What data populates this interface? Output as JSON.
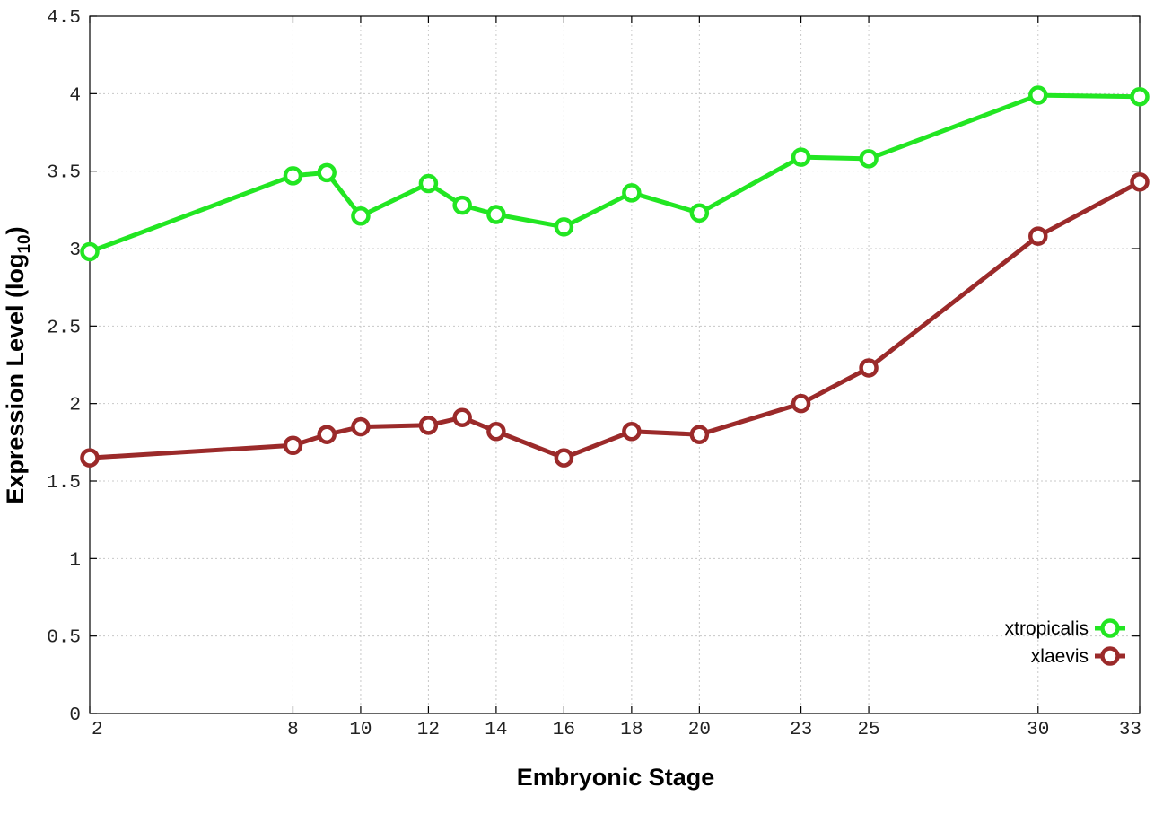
{
  "chart_data": {
    "type": "line",
    "xlabel": "Embryonic Stage",
    "ylabel": "Expression Level (log",
    "ylabel_subscript": "10",
    "ylabel_close": ")",
    "x": [
      2,
      8,
      9,
      10,
      12,
      13,
      14,
      16,
      18,
      20,
      23,
      25,
      30,
      33
    ],
    "x_tick_labels": [
      "2",
      "8",
      "10",
      "12",
      "14",
      "16",
      "18",
      "20",
      "23",
      "25",
      "30",
      "33"
    ],
    "x_tick_values": [
      2,
      8,
      10,
      12,
      14,
      16,
      18,
      20,
      23,
      25,
      30,
      33
    ],
    "xlim": [
      2,
      33
    ],
    "y_tick_labels": [
      "0",
      "0.5",
      "1",
      "1.5",
      "2",
      "2.5",
      "3",
      "3.5",
      "4",
      "4.5"
    ],
    "y_tick_values": [
      0,
      0.5,
      1,
      1.5,
      2,
      2.5,
      3,
      3.5,
      4,
      4.5
    ],
    "ylim": [
      0,
      4.5
    ],
    "grid": true,
    "legend_position": "bottom-right",
    "series": [
      {
        "name": "xtropicalis",
        "color": "#22e622",
        "values": [
          2.98,
          3.47,
          3.49,
          3.21,
          3.42,
          3.28,
          3.22,
          3.14,
          3.36,
          3.23,
          3.59,
          3.58,
          3.99,
          3.98
        ]
      },
      {
        "name": "xlaevis",
        "color": "#9b2a2a",
        "values": [
          1.65,
          1.73,
          1.8,
          1.85,
          1.86,
          1.91,
          1.82,
          1.65,
          1.82,
          1.8,
          2.0,
          2.23,
          3.08,
          3.43
        ]
      }
    ]
  }
}
